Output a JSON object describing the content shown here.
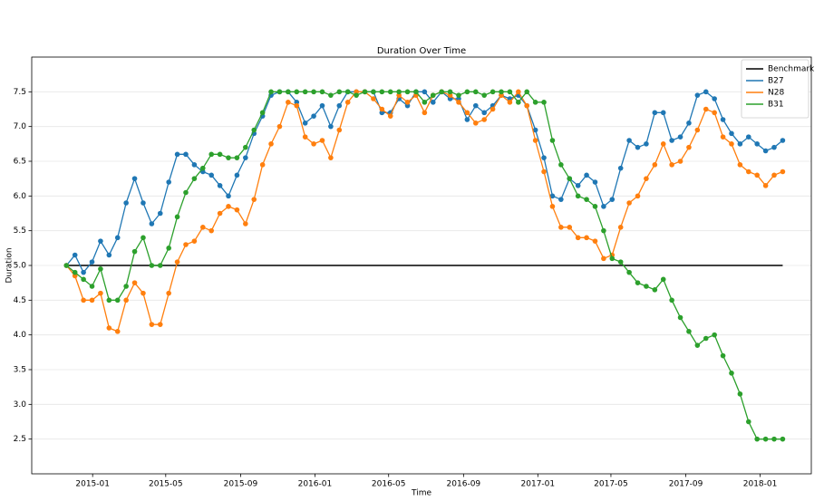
{
  "chart_data": {
    "type": "line",
    "title": "Duration Over Time",
    "x_label": "Time",
    "y_label": "Duration",
    "x": [
      "2014-11-19",
      "2014-12-03",
      "2014-12-17",
      "2014-12-31",
      "2015-01-14",
      "2015-01-28",
      "2015-02-11",
      "2015-02-25",
      "2015-03-11",
      "2015-03-25",
      "2015-04-08",
      "2015-04-22",
      "2015-05-06",
      "2015-05-20",
      "2015-06-03",
      "2015-06-17",
      "2015-07-01",
      "2015-07-15",
      "2015-07-29",
      "2015-08-12",
      "2015-08-26",
      "2015-09-09",
      "2015-09-23",
      "2015-10-07",
      "2015-10-21",
      "2015-11-04",
      "2015-11-18",
      "2015-12-02",
      "2015-12-16",
      "2015-12-30",
      "2016-01-13",
      "2016-01-27",
      "2016-02-10",
      "2016-02-24",
      "2016-03-09",
      "2016-03-23",
      "2016-04-06",
      "2016-04-20",
      "2016-05-04",
      "2016-05-18",
      "2016-06-01",
      "2016-06-15",
      "2016-06-29",
      "2016-07-13",
      "2016-07-27",
      "2016-08-10",
      "2016-08-24",
      "2016-09-07",
      "2016-09-21",
      "2016-10-05",
      "2016-10-19",
      "2016-11-02",
      "2016-11-16",
      "2016-11-30",
      "2016-12-14",
      "2016-12-28",
      "2017-01-11",
      "2017-01-25",
      "2017-02-08",
      "2017-02-22",
      "2017-03-08",
      "2017-03-22",
      "2017-04-05",
      "2017-04-19",
      "2017-05-03",
      "2017-05-17",
      "2017-05-31",
      "2017-06-14",
      "2017-06-28",
      "2017-07-12",
      "2017-07-26",
      "2017-08-09",
      "2017-08-23",
      "2017-09-06",
      "2017-09-20",
      "2017-10-04",
      "2017-10-18",
      "2017-11-01",
      "2017-11-15",
      "2017-11-29",
      "2017-12-13",
      "2017-12-27",
      "2018-01-10",
      "2018-01-24",
      "2018-02-07"
    ],
    "series": [
      {
        "name": "Benchmark",
        "color": "#000000",
        "markers": false,
        "x": [
          "2014-11-19",
          "2018-02-07"
        ],
        "values": [
          5.0,
          5.0
        ]
      },
      {
        "name": "B27",
        "color": "#1f77b4",
        "markers": true,
        "values": [
          5.0,
          5.15,
          4.9,
          5.05,
          5.35,
          5.15,
          5.4,
          5.9,
          6.25,
          5.9,
          5.6,
          5.75,
          6.2,
          6.6,
          6.6,
          6.45,
          6.35,
          6.3,
          6.15,
          6.0,
          6.3,
          6.55,
          6.9,
          7.15,
          7.45,
          7.5,
          7.5,
          7.35,
          7.05,
          7.15,
          7.3,
          7.0,
          7.3,
          7.5,
          7.5,
          7.5,
          7.5,
          7.2,
          7.2,
          7.4,
          7.3,
          7.5,
          7.5,
          7.35,
          7.5,
          7.4,
          7.4,
          7.1,
          7.3,
          7.2,
          7.3,
          7.45,
          7.4,
          7.45,
          7.3,
          6.95,
          6.55,
          6.0,
          5.95,
          6.25,
          6.15,
          6.3,
          6.2,
          5.85,
          5.95,
          6.4,
          6.8,
          6.7,
          6.75,
          7.2,
          7.2,
          6.8,
          6.85,
          7.05,
          7.45,
          7.5,
          7.4,
          7.1,
          6.9,
          6.75,
          6.85,
          6.75,
          6.65,
          6.7,
          6.8
        ]
      },
      {
        "name": "N28",
        "color": "#ff7f0e",
        "markers": true,
        "values": [
          5.0,
          4.85,
          4.5,
          4.5,
          4.6,
          4.1,
          4.05,
          4.5,
          4.75,
          4.6,
          4.15,
          4.15,
          4.6,
          5.05,
          5.3,
          5.35,
          5.55,
          5.5,
          5.75,
          5.85,
          5.8,
          5.6,
          5.95,
          6.45,
          6.75,
          7.0,
          7.35,
          7.3,
          6.85,
          6.75,
          6.8,
          6.55,
          6.95,
          7.35,
          7.5,
          7.5,
          7.4,
          7.25,
          7.15,
          7.45,
          7.35,
          7.45,
          7.2,
          7.45,
          7.5,
          7.45,
          7.35,
          7.2,
          7.05,
          7.1,
          7.25,
          7.45,
          7.35,
          7.5,
          7.3,
          6.8,
          6.35,
          5.85,
          5.55,
          5.55,
          5.4,
          5.4,
          5.35,
          5.1,
          5.15,
          5.55,
          5.9,
          6.0,
          6.25,
          6.45,
          6.75,
          6.45,
          6.5,
          6.7,
          6.95,
          7.25,
          7.2,
          6.85,
          6.75,
          6.45,
          6.35,
          6.3,
          6.15,
          6.3,
          6.35
        ]
      },
      {
        "name": "B31",
        "color": "#2ca02c",
        "markers": true,
        "values": [
          5.0,
          4.9,
          4.8,
          4.7,
          4.95,
          4.5,
          4.5,
          4.7,
          5.2,
          5.4,
          5.0,
          5.0,
          5.25,
          5.7,
          6.05,
          6.25,
          6.4,
          6.6,
          6.6,
          6.55,
          6.55,
          6.7,
          6.95,
          7.2,
          7.5,
          7.5,
          7.5,
          7.5,
          7.5,
          7.5,
          7.5,
          7.45,
          7.5,
          7.5,
          7.45,
          7.5,
          7.5,
          7.5,
          7.5,
          7.5,
          7.5,
          7.5,
          7.35,
          7.45,
          7.5,
          7.5,
          7.45,
          7.5,
          7.5,
          7.45,
          7.5,
          7.5,
          7.5,
          7.35,
          7.5,
          7.35,
          7.35,
          6.8,
          6.45,
          6.25,
          6.0,
          5.95,
          5.85,
          5.5,
          5.1,
          5.05,
          4.9,
          4.75,
          4.7,
          4.65,
          4.8,
          4.5,
          4.25,
          4.05,
          3.85,
          3.95,
          4.0,
          3.7,
          3.45,
          3.15,
          2.75,
          2.5,
          2.5,
          2.5,
          2.5
        ]
      }
    ],
    "xlim": [
      "2014-09-23",
      "2018-03-26"
    ],
    "xticks": [
      {
        "value": "2015-01-01",
        "label": "2015-01"
      },
      {
        "value": "2015-05-01",
        "label": "2015-05"
      },
      {
        "value": "2015-09-01",
        "label": "2015-09"
      },
      {
        "value": "2016-01-01",
        "label": "2016-01"
      },
      {
        "value": "2016-05-01",
        "label": "2016-05"
      },
      {
        "value": "2016-09-01",
        "label": "2016-09"
      },
      {
        "value": "2017-01-01",
        "label": "2017-01"
      },
      {
        "value": "2017-05-01",
        "label": "2017-05"
      },
      {
        "value": "2017-09-01",
        "label": "2017-09"
      },
      {
        "value": "2018-01-01",
        "label": "2018-01"
      }
    ],
    "ylim": [
      2.0,
      8.0
    ],
    "yticks": [
      {
        "value": 2.5,
        "label": "2.5"
      },
      {
        "value": 3.0,
        "label": "3.0"
      },
      {
        "value": 3.5,
        "label": "3.5"
      },
      {
        "value": 4.0,
        "label": "4.0"
      },
      {
        "value": 4.5,
        "label": "4.5"
      },
      {
        "value": 5.0,
        "label": "5.0"
      },
      {
        "value": 5.5,
        "label": "5.5"
      },
      {
        "value": 6.0,
        "label": "6.0"
      },
      {
        "value": 6.5,
        "label": "6.5"
      },
      {
        "value": 7.0,
        "label": "7.0"
      },
      {
        "value": 7.5,
        "label": "7.5"
      }
    ],
    "grid": true,
    "legend": "upper right"
  }
}
